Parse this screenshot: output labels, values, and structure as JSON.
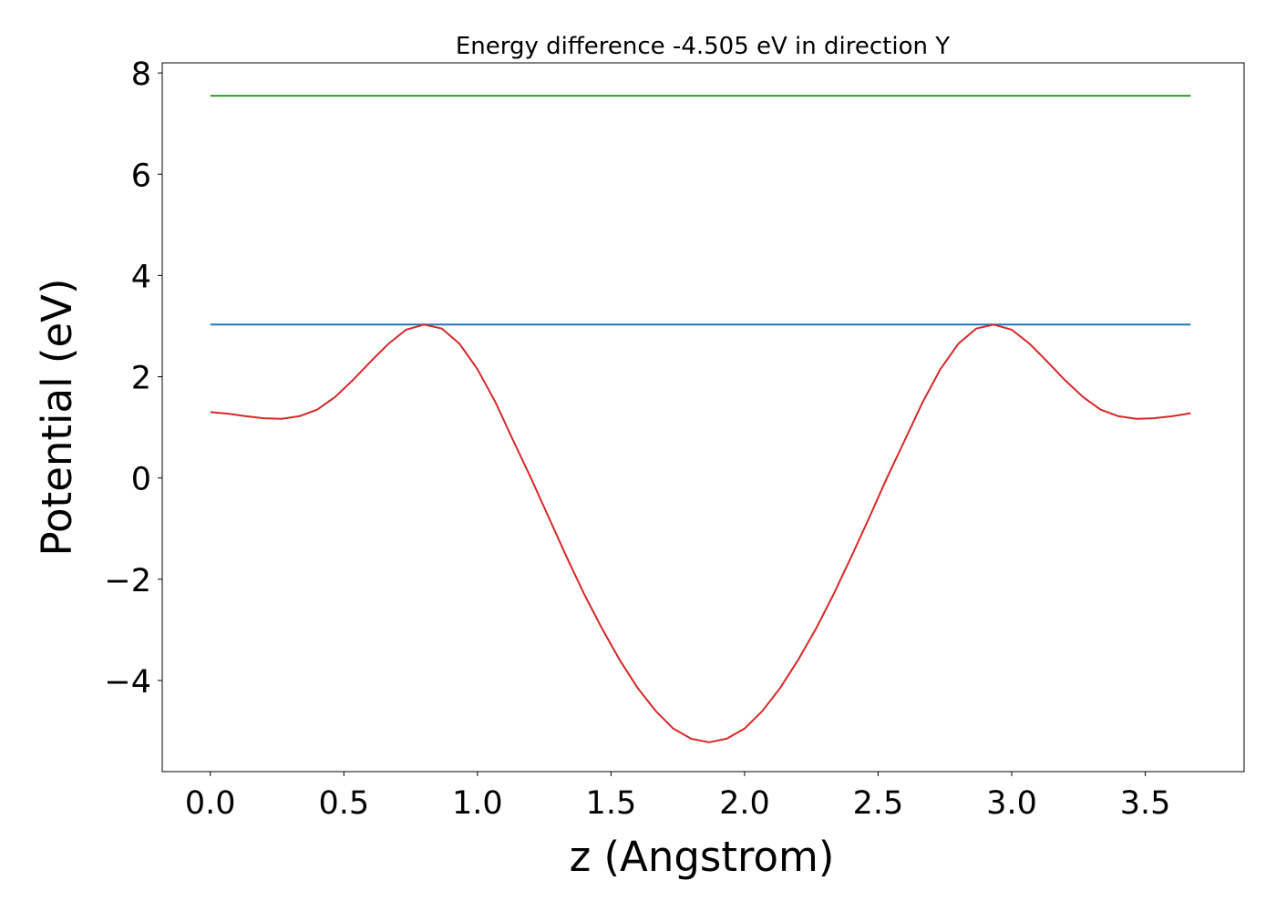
{
  "chart_data": {
    "type": "line",
    "title": "Energy difference -4.505 eV in direction Y",
    "xlabel": "z (Angstrom)",
    "ylabel": "Potential (eV)",
    "xlim": [
      -0.18,
      3.87
    ],
    "ylim": [
      -5.8,
      8.2
    ],
    "xticks": [
      0.0,
      0.5,
      1.0,
      1.5,
      2.0,
      2.5,
      3.0,
      3.5
    ],
    "xtick_labels": [
      "0.0",
      "0.5",
      "1.0",
      "1.5",
      "2.0",
      "2.5",
      "3.0",
      "3.5"
    ],
    "yticks": [
      -4,
      -2,
      0,
      2,
      4,
      6,
      8
    ],
    "ytick_labels": [
      "−4",
      "−2",
      "0",
      "2",
      "4",
      "6",
      "8"
    ],
    "grid": false,
    "series": [
      {
        "color": "#2ca02c",
        "x": [
          0.0,
          3.67
        ],
        "y": [
          7.55,
          7.55
        ]
      },
      {
        "color": "#1f77b4",
        "x": [
          0.0,
          3.67
        ],
        "y": [
          3.03,
          3.03
        ]
      },
      {
        "color": "#d62728",
        "x": [
          0.0,
          0.067,
          0.133,
          0.2,
          0.267,
          0.333,
          0.4,
          0.467,
          0.533,
          0.6,
          0.667,
          0.733,
          0.8,
          0.867,
          0.933,
          1.0,
          1.067,
          1.133,
          1.2,
          1.267,
          1.333,
          1.4,
          1.467,
          1.533,
          1.6,
          1.667,
          1.733,
          1.8,
          1.867,
          1.933,
          2.0,
          2.067,
          2.133,
          2.2,
          2.267,
          2.333,
          2.4,
          2.467,
          2.533,
          2.6,
          2.667,
          2.733,
          2.8,
          2.867,
          2.933,
          3.0,
          3.067,
          3.133,
          3.2,
          3.267,
          3.333,
          3.4,
          3.467,
          3.533,
          3.6,
          3.67
        ],
        "y": [
          1.3,
          1.27,
          1.22,
          1.18,
          1.17,
          1.22,
          1.35,
          1.6,
          1.93,
          2.3,
          2.65,
          2.93,
          3.03,
          2.95,
          2.65,
          2.15,
          1.5,
          0.75,
          0.0,
          -0.78,
          -1.55,
          -2.3,
          -2.98,
          -3.6,
          -4.15,
          -4.6,
          -4.95,
          -5.15,
          -5.22,
          -5.15,
          -4.95,
          -4.6,
          -4.15,
          -3.6,
          -2.98,
          -2.3,
          -1.55,
          -0.78,
          0.0,
          0.75,
          1.5,
          2.15,
          2.65,
          2.95,
          3.03,
          2.93,
          2.65,
          2.3,
          1.93,
          1.6,
          1.35,
          1.22,
          1.17,
          1.18,
          1.22,
          1.28
        ]
      }
    ]
  }
}
